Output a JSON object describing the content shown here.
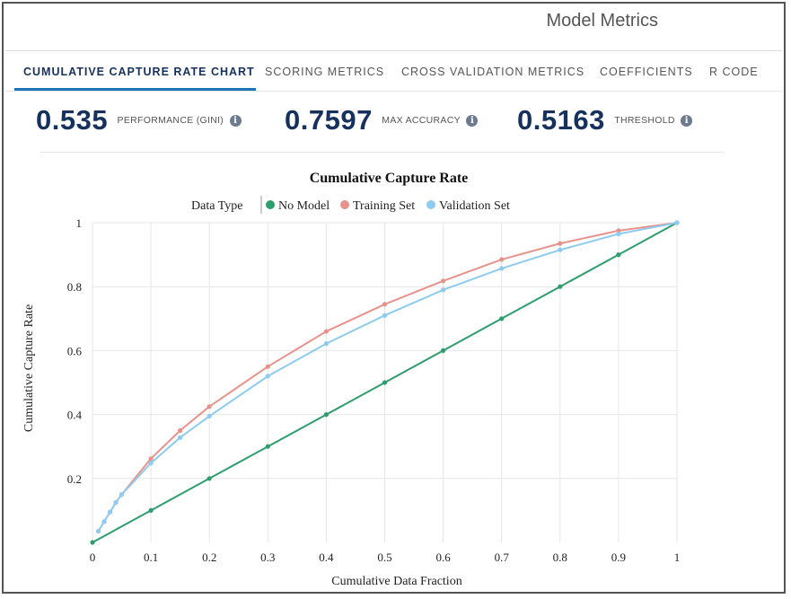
{
  "header": {
    "title": "Model Metrics"
  },
  "tabs": [
    {
      "label": "CUMULATIVE CAPTURE RATE CHART",
      "active": true
    },
    {
      "label": "SCORING METRICS",
      "active": false
    },
    {
      "label": "CROSS VALIDATION METRICS",
      "active": false
    },
    {
      "label": "COEFFICIENTS",
      "active": false
    },
    {
      "label": "R CODE",
      "active": false
    }
  ],
  "metrics": [
    {
      "value": "0.535",
      "label": "PERFORMANCE (GINI)",
      "icon": "info-icon"
    },
    {
      "value": "0.7597",
      "label": "MAX ACCURACY",
      "icon": "info-icon"
    },
    {
      "value": "0.5163",
      "label": "THRESHOLD",
      "icon": "info-icon"
    }
  ],
  "colors": {
    "accent": "#1b74b7",
    "metric_text": "#16325c",
    "no_model": "#2e9e6e",
    "training": "#e8928c",
    "validation": "#8ecbf0"
  },
  "chart_data": {
    "type": "line",
    "title": "Cumulative Capture Rate",
    "xlabel": "Cumulative Data Fraction",
    "ylabel": "Cumulative Capture Rate",
    "legend_title": "Data Type",
    "legend_position": "top",
    "grid": true,
    "xlim": [
      0,
      1
    ],
    "ylim": [
      0,
      1
    ],
    "x_ticks": [
      "0",
      "0.1",
      "0.2",
      "0.3",
      "0.4",
      "0.5",
      "0.6",
      "0.7",
      "0.8",
      "0.9",
      "1"
    ],
    "y_ticks": [
      "0.2",
      "0.4",
      "0.6",
      "0.8",
      "1"
    ],
    "series": [
      {
        "name": "No Model",
        "color": "#2e9e6e",
        "x": [
          0,
          0.1,
          0.2,
          0.3,
          0.4,
          0.5,
          0.6,
          0.7,
          0.8,
          0.9,
          1
        ],
        "y": [
          0,
          0.1,
          0.2,
          0.3,
          0.4,
          0.5,
          0.6,
          0.7,
          0.8,
          0.9,
          1
        ]
      },
      {
        "name": "Training Set",
        "color": "#e8928c",
        "x": [
          0.01,
          0.02,
          0.03,
          0.04,
          0.05,
          0.1,
          0.15,
          0.2,
          0.3,
          0.4,
          0.5,
          0.6,
          0.7,
          0.8,
          0.9,
          1
        ],
        "y": [
          0.035,
          0.065,
          0.095,
          0.125,
          0.15,
          0.262,
          0.35,
          0.425,
          0.55,
          0.66,
          0.745,
          0.818,
          0.885,
          0.935,
          0.975,
          1
        ]
      },
      {
        "name": "Validation Set",
        "color": "#8ecbf0",
        "x": [
          0.01,
          0.02,
          0.03,
          0.04,
          0.05,
          0.1,
          0.15,
          0.2,
          0.3,
          0.4,
          0.5,
          0.6,
          0.7,
          0.8,
          0.9,
          1
        ],
        "y": [
          0.035,
          0.065,
          0.095,
          0.125,
          0.15,
          0.248,
          0.328,
          0.395,
          0.52,
          0.622,
          0.71,
          0.79,
          0.857,
          0.915,
          0.965,
          1
        ]
      }
    ]
  }
}
